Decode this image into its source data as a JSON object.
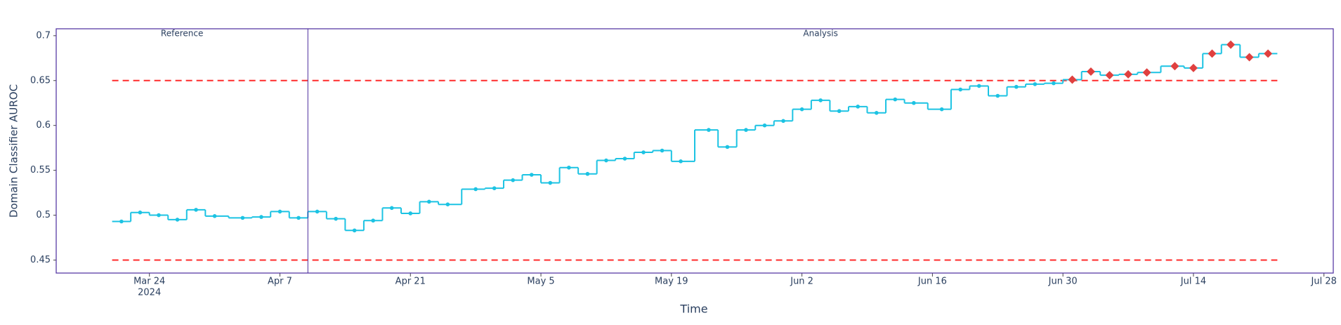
{
  "chart_data": {
    "type": "step",
    "x_label": "Time",
    "y_label": "Domain Classifier AUROC",
    "xlim": [
      "2024-03-14",
      "2024-07-29"
    ],
    "xticks": [
      {
        "value": "2024-03-24",
        "label": "Mar 24",
        "sublabel": "2024"
      },
      {
        "value": "2024-04-07",
        "label": "Apr 7"
      },
      {
        "value": "2024-04-21",
        "label": "Apr 21"
      },
      {
        "value": "2024-05-05",
        "label": "May 5"
      },
      {
        "value": "2024-05-19",
        "label": "May 19"
      },
      {
        "value": "2024-06-02",
        "label": "Jun 2"
      },
      {
        "value": "2024-06-16",
        "label": "Jun 16"
      },
      {
        "value": "2024-06-30",
        "label": "Jun 30"
      },
      {
        "value": "2024-07-14",
        "label": "Jul 14"
      },
      {
        "value": "2024-07-28",
        "label": "Jul 28"
      }
    ],
    "ylim": [
      0.4355,
      0.7077
    ],
    "yticks": [
      0.45,
      0.5,
      0.55,
      0.6,
      0.65,
      0.7
    ],
    "thresholds": {
      "upper": 0.65,
      "lower": 0.45,
      "color": "#ff2a2a"
    },
    "alert_color": "#e0403f",
    "frame_color": "#4b2c9e",
    "series": [
      {
        "name": "Reference",
        "color": "#1cc3e3",
        "x": [
          "2024-03-21",
          "2024-03-23",
          "2024-03-25",
          "2024-03-27",
          "2024-03-29",
          "2024-03-31",
          "2024-04-03",
          "2024-04-05",
          "2024-04-07",
          "2024-04-09"
        ],
        "values": [
          0.493,
          0.503,
          0.5,
          0.495,
          0.506,
          0.499,
          0.497,
          0.498,
          0.504,
          0.497
        ]
      },
      {
        "name": "Analysis",
        "color": "#1cc3e3",
        "x": [
          "2024-04-11",
          "2024-04-13",
          "2024-04-15",
          "2024-04-17",
          "2024-04-19",
          "2024-04-21",
          "2024-04-23",
          "2024-04-25",
          "2024-04-28",
          "2024-04-30",
          "2024-05-02",
          "2024-05-04",
          "2024-05-06",
          "2024-05-08",
          "2024-05-10",
          "2024-05-12",
          "2024-05-14",
          "2024-05-16",
          "2024-05-18",
          "2024-05-20",
          "2024-05-23",
          "2024-05-25",
          "2024-05-27",
          "2024-05-29",
          "2024-05-31",
          "2024-06-02",
          "2024-06-04",
          "2024-06-06",
          "2024-06-08",
          "2024-06-10",
          "2024-06-12",
          "2024-06-14",
          "2024-06-17",
          "2024-06-19",
          "2024-06-21",
          "2024-06-23",
          "2024-06-25",
          "2024-06-27",
          "2024-06-29",
          "2024-07-01",
          "2024-07-03",
          "2024-07-05",
          "2024-07-07",
          "2024-07-09",
          "2024-07-12",
          "2024-07-14",
          "2024-07-16",
          "2024-07-18",
          "2024-07-20",
          "2024-07-22"
        ],
        "values": [
          0.504,
          0.496,
          0.483,
          0.494,
          0.508,
          0.502,
          0.515,
          0.512,
          0.529,
          0.53,
          0.539,
          0.545,
          0.536,
          0.553,
          0.546,
          0.561,
          0.563,
          0.57,
          0.572,
          0.56,
          0.595,
          0.576,
          0.595,
          0.6,
          0.605,
          0.618,
          0.628,
          0.616,
          0.621,
          0.614,
          0.629,
          0.625,
          0.618,
          0.64,
          0.644,
          0.633,
          0.643,
          0.646,
          0.647,
          0.651,
          0.66,
          0.656,
          0.657,
          0.659,
          0.666,
          0.664,
          0.68,
          0.69,
          0.676,
          0.68
        ]
      }
    ]
  }
}
